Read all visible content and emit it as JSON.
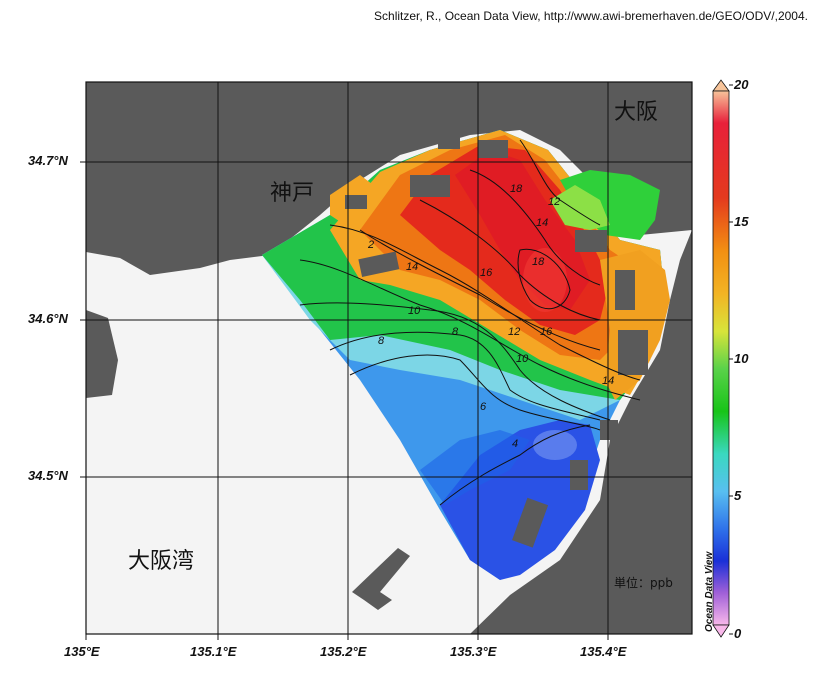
{
  "credit": "Schlitzer, R., Ocean Data View, http://www.awi-bremerhaven.de/GEO/ODV/,2004.",
  "axes": {
    "lat_labels": [
      "34.7°N",
      "34.6°N",
      "34.5°N"
    ],
    "lon_labels": [
      "135°E",
      "135.1°E",
      "135.2°E",
      "135.3°E",
      "135.4°E"
    ]
  },
  "places": {
    "kobe": "神戸",
    "osaka": "大阪",
    "osaka_bay": "大阪湾"
  },
  "unit_label": "単位：ppb",
  "colorbar": {
    "title": "Ocean Data View",
    "ticks": [
      "20",
      "15",
      "10",
      "5",
      "0"
    ],
    "colors": [
      "#f7b98a",
      "#e8202a",
      "#e8381e",
      "#f07a10",
      "#f5a31a",
      "#e6e22a",
      "#b8e05a",
      "#1ec81e",
      "#3cd23c",
      "#2ee2c8",
      "#58c2ee",
      "#3c8eee",
      "#1c4ee8",
      "#2222c8",
      "#b066d8",
      "#f4a8e8"
    ]
  },
  "contour_labels": [
    "18",
    "16",
    "14",
    "12",
    "10",
    "8",
    "6",
    "4",
    "2"
  ],
  "legend_colors": {
    "land": "#5a5a5a",
    "water_nodata": "#f4f4f4",
    "grid": "#111111"
  }
}
